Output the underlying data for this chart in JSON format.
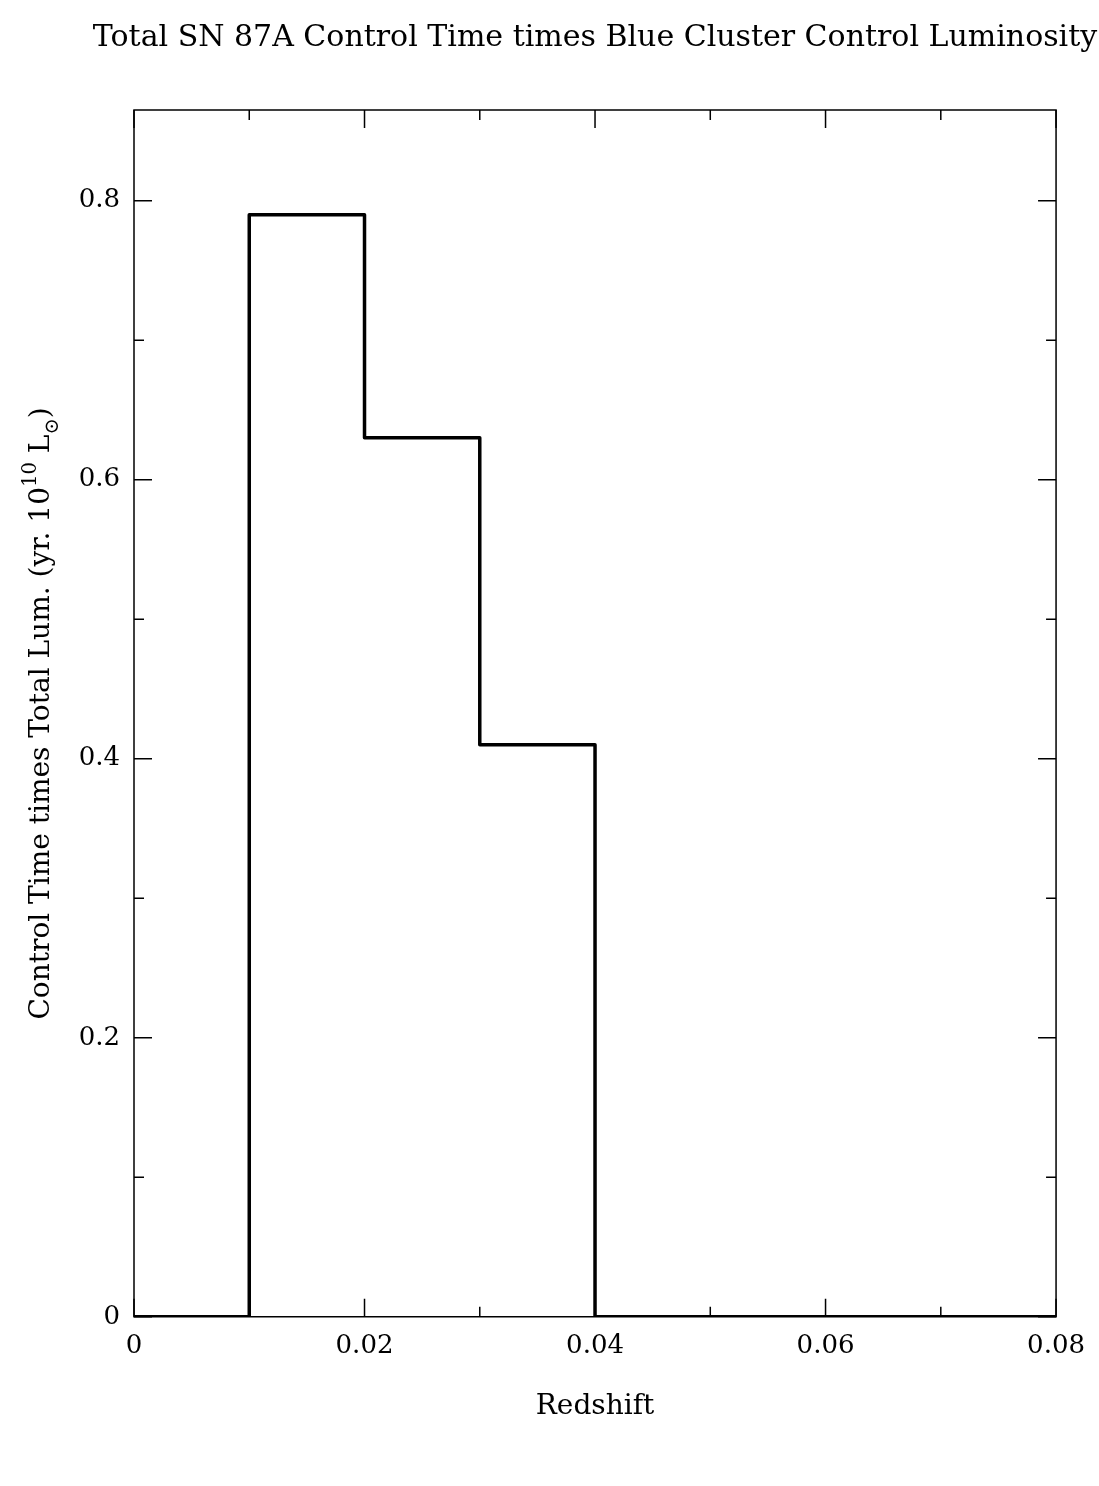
{
  "chart_data": {
    "type": "histogram",
    "title": "Total SN 87A Control Time times Blue Cluster Control Luminosity",
    "xlabel": "Redshift",
    "ylabel": "Control Time times Total Lum. (yr. 10$^{10}$ L$_{⊙}$)",
    "bins": [
      0,
      0.01,
      0.02,
      0.03,
      0.04,
      0.05,
      0.06,
      0.07,
      0.08
    ],
    "values": [
      0,
      0.79,
      0.63,
      0.41,
      0,
      0,
      0,
      0
    ],
    "color": "#000000",
    "xlim": [
      0,
      0.08
    ],
    "xticks": [
      0,
      {
        "value": 0.01,
        "label": null
      },
      0.02,
      {
        "value": 0.03,
        "label": null
      },
      0.04,
      {
        "value": 0.05,
        "label": null
      },
      0.06,
      {
        "value": 0.07,
        "label": null
      },
      0.08
    ],
    "ylim": [
      0,
      0.865
    ],
    "yticks": [
      0,
      {
        "value": 0.1,
        "label": null
      },
      0.2,
      {
        "value": 0.3,
        "label": null
      },
      0.4,
      {
        "value": 0.5,
        "label": null
      },
      0.6,
      {
        "value": 0.7,
        "label": null
      },
      0.8
    ],
    "grid": false,
    "legend": false
  }
}
